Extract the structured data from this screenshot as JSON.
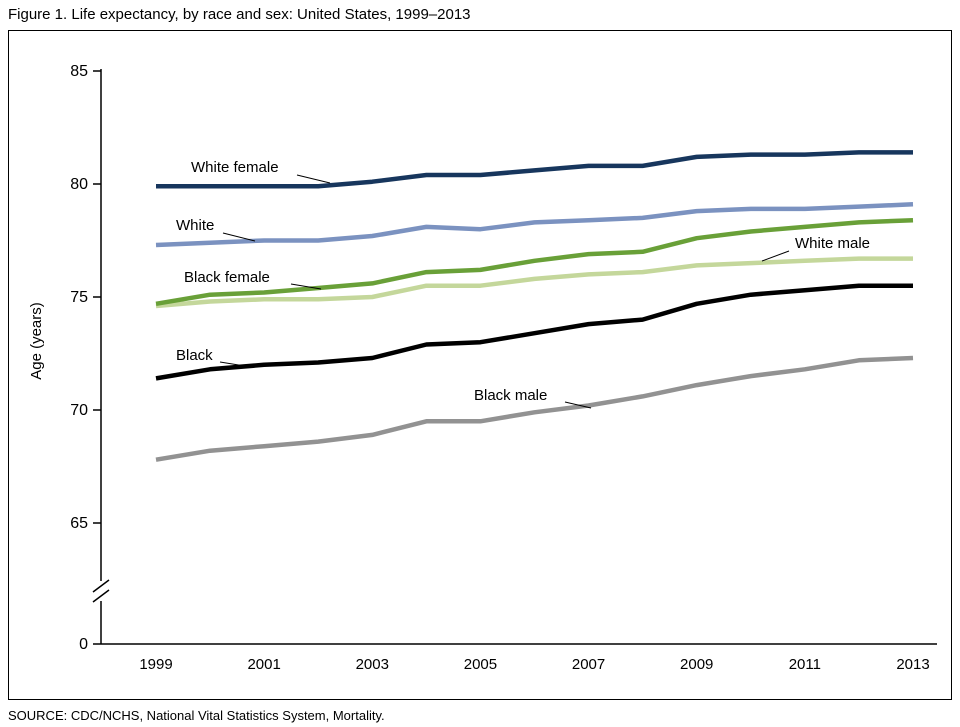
{
  "figure": {
    "title": "Figure 1. Life expectancy, by race and sex: United States, 1999–2013",
    "source": "SOURCE: CDC/NCHS, National Vital Statistics System, Mortality."
  },
  "chart_data": {
    "type": "line",
    "title": "Life expectancy, by race and sex: United States, 1999–2013",
    "xlabel": "",
    "ylabel": "Age (years)",
    "x": [
      1999,
      2000,
      2001,
      2002,
      2003,
      2004,
      2005,
      2006,
      2007,
      2008,
      2009,
      2010,
      2011,
      2012,
      2013
    ],
    "x_tick_labels": [
      "1999",
      "2001",
      "2003",
      "2005",
      "2007",
      "2009",
      "2011",
      "2013"
    ],
    "y_ticks": [
      0,
      65,
      70,
      75,
      80,
      85
    ],
    "ylim_display": [
      65,
      85
    ],
    "axis_break": true,
    "grid": false,
    "legend_position": "inline-labels",
    "series": [
      {
        "name": "White female",
        "color": "#17365d",
        "values": [
          79.9,
          79.9,
          79.9,
          79.9,
          80.1,
          80.4,
          80.4,
          80.6,
          80.8,
          80.8,
          81.2,
          81.3,
          81.3,
          81.4,
          81.4
        ]
      },
      {
        "name": "White",
        "color": "#7b92c0",
        "values": [
          77.3,
          77.4,
          77.5,
          77.5,
          77.7,
          78.1,
          78.0,
          78.3,
          78.4,
          78.5,
          78.8,
          78.9,
          78.9,
          79.0,
          79.1
        ]
      },
      {
        "name": "Black female",
        "color": "#69a038",
        "values": [
          74.7,
          75.1,
          75.2,
          75.4,
          75.6,
          76.1,
          76.2,
          76.6,
          76.9,
          77.0,
          77.6,
          77.9,
          78.1,
          78.3,
          78.4
        ]
      },
      {
        "name": "White male",
        "color": "#c4d79b",
        "values": [
          74.6,
          74.8,
          74.9,
          74.9,
          75.0,
          75.5,
          75.5,
          75.8,
          76.0,
          76.1,
          76.4,
          76.5,
          76.6,
          76.7,
          76.7
        ]
      },
      {
        "name": "Black",
        "color": "#000000",
        "values": [
          71.4,
          71.8,
          72.0,
          72.1,
          72.3,
          72.9,
          73.0,
          73.4,
          73.8,
          74.0,
          74.7,
          75.1,
          75.3,
          75.5,
          75.5
        ]
      },
      {
        "name": "Black male",
        "color": "#929292",
        "values": [
          67.8,
          68.2,
          68.4,
          68.6,
          68.9,
          69.5,
          69.5,
          69.9,
          70.2,
          70.6,
          71.1,
          71.5,
          71.8,
          72.2,
          72.3
        ]
      }
    ]
  }
}
